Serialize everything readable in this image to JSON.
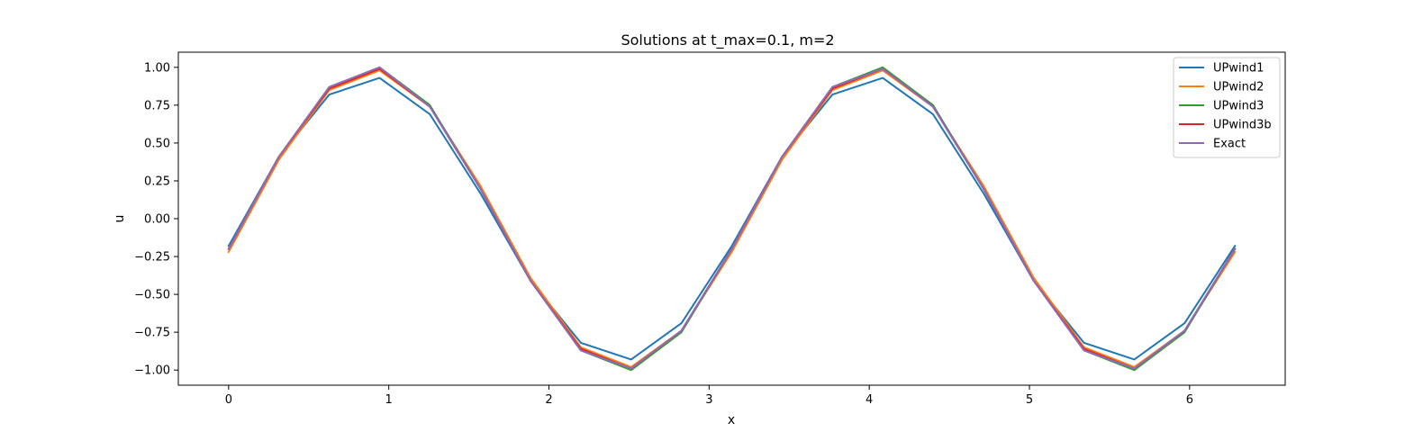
{
  "chart_data": {
    "type": "line",
    "title": "Solutions at t_max=0.1, m=2",
    "xlabel": "x",
    "ylabel": "u",
    "xlim": [
      -0.314,
      6.597
    ],
    "ylim": [
      -1.1,
      1.1
    ],
    "x_ticks": [
      "0",
      "1",
      "2",
      "3",
      "4",
      "5",
      "6"
    ],
    "y_ticks": [
      "1.00",
      "0.75",
      "0.50",
      "0.25",
      "0.00",
      "−0.25",
      "−0.50",
      "−0.75",
      "−1.00"
    ],
    "legend_position": "top-right",
    "grid": false,
    "x": [
      0,
      0.3142,
      0.6283,
      0.9425,
      1.2566,
      1.5708,
      1.885,
      2.1991,
      2.5133,
      2.8274,
      3.1416,
      3.4558,
      3.7699,
      4.0841,
      4.3982,
      4.7124,
      5.0265,
      5.3407,
      5.6549,
      5.969,
      6.2832
    ],
    "series": [
      {
        "name": "UPwind1",
        "color": "#1f77b4",
        "values": [
          -0.18,
          0.41,
          0.82,
          0.93,
          0.69,
          0.17,
          -0.41,
          -0.82,
          -0.93,
          -0.69,
          -0.18,
          0.41,
          0.82,
          0.93,
          0.69,
          0.17,
          -0.41,
          -0.82,
          -0.93,
          -0.69,
          -0.18
        ]
      },
      {
        "name": "UPwind2",
        "color": "#ff7f0e",
        "values": [
          -0.22,
          0.39,
          0.85,
          0.98,
          0.74,
          0.22,
          -0.39,
          -0.85,
          -0.98,
          -0.74,
          -0.22,
          0.39,
          0.85,
          0.98,
          0.74,
          0.22,
          -0.39,
          -0.85,
          -0.98,
          -0.74,
          -0.22
        ]
      },
      {
        "name": "UPwind3",
        "color": "#2ca02c",
        "values": [
          -0.2,
          0.41,
          0.87,
          1.0,
          0.75,
          0.2,
          -0.41,
          -0.87,
          -1.0,
          -0.75,
          -0.2,
          0.41,
          0.87,
          1.0,
          0.75,
          0.2,
          -0.41,
          -0.87,
          -1.0,
          -0.75,
          -0.2
        ]
      },
      {
        "name": "UPwind3b",
        "color": "#d62728",
        "values": [
          -0.2,
          0.41,
          0.86,
          0.99,
          0.74,
          0.2,
          -0.41,
          -0.86,
          -0.99,
          -0.74,
          -0.2,
          0.41,
          0.86,
          0.99,
          0.74,
          0.2,
          -0.41,
          -0.86,
          -0.99,
          -0.74,
          -0.2
        ]
      },
      {
        "name": "Exact",
        "color": "#9467bd",
        "values": [
          -0.2,
          0.41,
          0.87,
          1.0,
          0.74,
          0.2,
          -0.41,
          -0.87,
          -0.99,
          -0.74,
          -0.2,
          0.41,
          0.87,
          0.99,
          0.74,
          0.2,
          -0.41,
          -0.87,
          -0.99,
          -0.74,
          -0.2
        ]
      }
    ]
  }
}
